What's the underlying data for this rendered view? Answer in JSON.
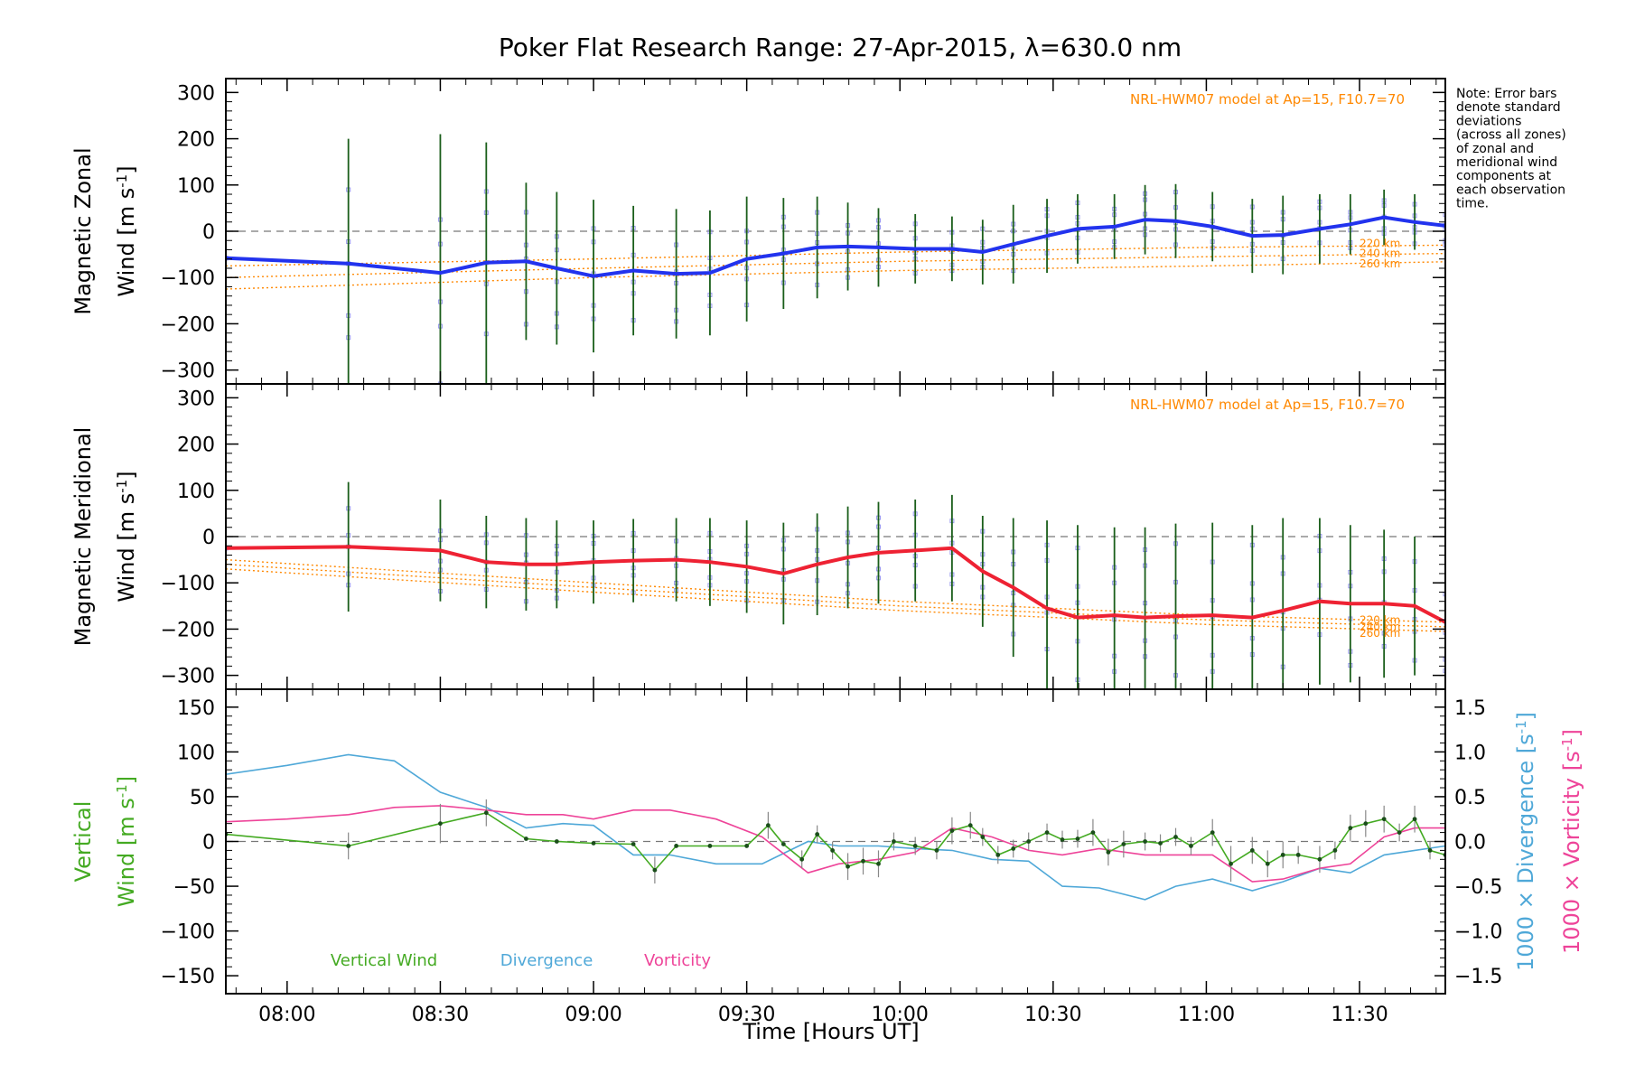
{
  "chart_data": {
    "title": "Poker Flat Research Range: 27-Apr-2015, λ=630.0 nm",
    "xlabel": "Time [Hours UT]",
    "x_ticks": [
      "08:00",
      "08:30",
      "09:00",
      "09:30",
      "10:00",
      "10:30",
      "11:00",
      "11:30"
    ],
    "note": [
      "Note: Error bars",
      "denote standard",
      "deviations",
      "(across all zones)",
      "of zonal and",
      "meridional wind",
      "components at",
      "each observation",
      "time."
    ],
    "colors": {
      "zonal": "#2233ee",
      "meridional": "#ee2233",
      "model": "#ff8800",
      "vertical": "#44aa22",
      "divergence": "#4fa8d8",
      "vorticity": "#ee4499",
      "scatter": "#9999ee"
    },
    "panels": [
      {
        "type": "line",
        "id": "zonal",
        "ylabel1": "Magnetic Zonal",
        "ylabel2": "Wind [m s",
        "ylabel_sup": "-1",
        "ylabel_end": "]",
        "ylim": [
          -330,
          330
        ],
        "yticks": [
          "300",
          "200",
          "100",
          "0",
          "−100",
          "−200",
          "−300"
        ],
        "model_label": "NRL-HWM07 model at Ap=15, F10.7=70",
        "altitudes": [
          "220 km",
          "240 km",
          "260 km"
        ],
        "series": {
          "x": [
            7.8,
            8.2,
            8.5,
            8.65,
            8.78,
            8.88,
            9.0,
            9.13,
            9.27,
            9.38,
            9.5,
            9.62,
            9.73,
            9.83,
            9.93,
            10.05,
            10.17,
            10.27,
            10.37,
            10.48,
            10.58,
            10.7,
            10.8,
            10.9,
            11.02,
            11.15,
            11.25,
            11.37,
            11.47,
            11.58,
            11.68,
            11.78
          ],
          "y": [
            -58,
            -70,
            -90,
            -68,
            -65,
            -80,
            -97,
            -85,
            -92,
            -90,
            -60,
            -48,
            -35,
            -33,
            -35,
            -38,
            -38,
            -45,
            -28,
            -10,
            5,
            10,
            25,
            22,
            10,
            -10,
            -8,
            5,
            15,
            30,
            20,
            12
          ],
          "err": [
            0,
            270,
            300,
            260,
            170,
            165,
            165,
            140,
            140,
            135,
            135,
            120,
            110,
            95,
            85,
            75,
            70,
            70,
            85,
            80,
            75,
            70,
            75,
            80,
            75,
            80,
            85,
            75,
            65,
            60,
            60,
            55
          ]
        },
        "model": {
          "x": [
            7.8,
            9.0,
            10.0,
            11.0,
            11.78
          ],
          "km220": [
            -75,
            -60,
            -45,
            -35,
            -30
          ],
          "km240": [
            -100,
            -80,
            -65,
            -55,
            -48
          ],
          "km260": [
            -125,
            -100,
            -85,
            -75,
            -66
          ]
        }
      },
      {
        "type": "line",
        "id": "meridional",
        "ylabel1": "Magnetic Meridional",
        "ylabel2": "Wind [m s",
        "ylabel_sup": "-1",
        "ylabel_end": "]",
        "ylim": [
          -330,
          330
        ],
        "yticks": [
          "300",
          "200",
          "100",
          "0",
          "−100",
          "−200",
          "−300"
        ],
        "model_label": "NRL-HWM07 model at Ap=15, F10.7=70",
        "altitudes": [
          "220 km",
          "240 km",
          "260 km"
        ],
        "series": {
          "x": [
            7.8,
            8.2,
            8.5,
            8.65,
            8.78,
            8.88,
            9.0,
            9.13,
            9.27,
            9.38,
            9.5,
            9.62,
            9.73,
            9.83,
            9.93,
            10.05,
            10.17,
            10.27,
            10.37,
            10.48,
            10.58,
            10.7,
            10.8,
            10.9,
            11.02,
            11.15,
            11.25,
            11.37,
            11.47,
            11.58,
            11.68,
            11.78
          ],
          "y": [
            -25,
            -22,
            -30,
            -55,
            -60,
            -60,
            -55,
            -52,
            -50,
            -55,
            -65,
            -80,
            -60,
            -45,
            -35,
            -30,
            -25,
            -75,
            -110,
            -155,
            -175,
            -170,
            -175,
            -172,
            -170,
            -175,
            -160,
            -140,
            -145,
            -145,
            -150,
            -185
          ],
          "err": [
            0,
            140,
            110,
            100,
            100,
            95,
            90,
            90,
            90,
            95,
            100,
            110,
            110,
            110,
            110,
            110,
            115,
            120,
            150,
            190,
            200,
            190,
            195,
            200,
            200,
            200,
            200,
            180,
            170,
            160,
            150,
            140
          ]
        },
        "model": {
          "x": [
            7.8,
            9.0,
            10.0,
            11.0,
            11.78
          ],
          "km220": [
            -50,
            -100,
            -140,
            -170,
            -185
          ],
          "km240": [
            -60,
            -110,
            -150,
            -180,
            -195
          ],
          "km260": [
            -70,
            -120,
            -160,
            -190,
            -205
          ]
        }
      },
      {
        "type": "line",
        "id": "vertical",
        "ylabel1": "Vertical",
        "ylabel2": "Wind [m s",
        "ylabel_sup": "-1",
        "ylabel_end": "]",
        "ylim": [
          -170,
          170
        ],
        "yticks": [
          "150",
          "100",
          "50",
          "0",
          "−50",
          "−100",
          "−150"
        ],
        "y2lim": [
          -1.7,
          1.7
        ],
        "y2ticks": [
          "1.5",
          "1.0",
          "0.5",
          "0.0",
          "−0.5",
          "−1.0",
          "−1.5"
        ],
        "y2label_div": "1000 × Divergence [s",
        "y2label_vort": "1000 × Vorticity [s",
        "y2label_sup": "-1",
        "y2label_end": "]",
        "legend": [
          "Vertical Wind",
          "Divergence",
          "Vorticity"
        ],
        "vertical_wind": {
          "x": [
            7.8,
            8.2,
            8.5,
            8.65,
            8.78,
            8.88,
            9.0,
            9.13,
            9.2,
            9.27,
            9.38,
            9.5,
            9.57,
            9.62,
            9.68,
            9.73,
            9.78,
            9.83,
            9.88,
            9.93,
            9.98,
            10.05,
            10.12,
            10.17,
            10.23,
            10.27,
            10.32,
            10.37,
            10.42,
            10.48,
            10.53,
            10.58,
            10.63,
            10.68,
            10.73,
            10.8,
            10.85,
            10.9,
            10.95,
            11.02,
            11.08,
            11.15,
            11.2,
            11.25,
            11.3,
            11.37,
            11.42,
            11.47,
            11.52,
            11.58,
            11.63,
            11.68,
            11.73,
            11.78
          ],
          "y": [
            8,
            -5,
            20,
            32,
            3,
            0,
            -2,
            -3,
            -32,
            -5,
            -5,
            -5,
            18,
            -3,
            -20,
            8,
            -10,
            -28,
            -22,
            -25,
            0,
            -5,
            -10,
            12,
            18,
            5,
            -15,
            -8,
            0,
            10,
            2,
            3,
            10,
            -12,
            -3,
            0,
            -2,
            5,
            -5,
            10,
            -25,
            -10,
            -25,
            -15,
            -15,
            -20,
            -10,
            15,
            20,
            25,
            10,
            25,
            -10,
            -15
          ],
          "err": [
            0,
            15,
            22,
            15,
            0,
            0,
            0,
            0,
            15,
            0,
            0,
            0,
            15,
            0,
            10,
            10,
            10,
            15,
            15,
            15,
            10,
            10,
            10,
            15,
            15,
            10,
            10,
            10,
            10,
            10,
            10,
            10,
            15,
            15,
            15,
            10,
            10,
            10,
            10,
            15,
            20,
            15,
            15,
            15,
            10,
            15,
            10,
            15,
            15,
            15,
            10,
            15,
            10,
            10
          ]
        },
        "divergence": {
          "x": [
            7.8,
            8.0,
            8.2,
            8.35,
            8.5,
            8.65,
            8.78,
            8.9,
            9.0,
            9.13,
            9.25,
            9.4,
            9.55,
            9.7,
            9.8,
            9.93,
            10.05,
            10.17,
            10.3,
            10.42,
            10.53,
            10.65,
            10.8,
            10.9,
            11.02,
            11.15,
            11.25,
            11.37,
            11.47,
            11.58,
            11.68,
            11.78
          ],
          "y": [
            0.75,
            0.85,
            0.97,
            0.9,
            0.55,
            0.38,
            0.15,
            0.2,
            0.18,
            -0.15,
            -0.15,
            -0.25,
            -0.25,
            0.0,
            -0.05,
            -0.05,
            -0.08,
            -0.1,
            -0.2,
            -0.22,
            -0.5,
            -0.52,
            -0.65,
            -0.5,
            -0.42,
            -0.55,
            -0.45,
            -0.3,
            -0.35,
            -0.15,
            -0.1,
            -0.05
          ]
        },
        "vorticity": {
          "x": [
            7.8,
            8.0,
            8.2,
            8.35,
            8.5,
            8.65,
            8.78,
            8.9,
            9.0,
            9.13,
            9.25,
            9.4,
            9.55,
            9.7,
            9.8,
            9.93,
            10.05,
            10.17,
            10.3,
            10.42,
            10.53,
            10.65,
            10.8,
            10.9,
            11.02,
            11.15,
            11.25,
            11.37,
            11.47,
            11.58,
            11.68,
            11.78
          ],
          "y": [
            0.22,
            0.25,
            0.3,
            0.38,
            0.4,
            0.35,
            0.3,
            0.3,
            0.25,
            0.35,
            0.35,
            0.25,
            0.05,
            -0.35,
            -0.25,
            -0.2,
            -0.12,
            0.15,
            0.05,
            -0.1,
            -0.15,
            -0.08,
            -0.15,
            -0.15,
            -0.15,
            -0.45,
            -0.42,
            -0.3,
            -0.25,
            0.05,
            0.15,
            0.15
          ]
        }
      }
    ]
  }
}
